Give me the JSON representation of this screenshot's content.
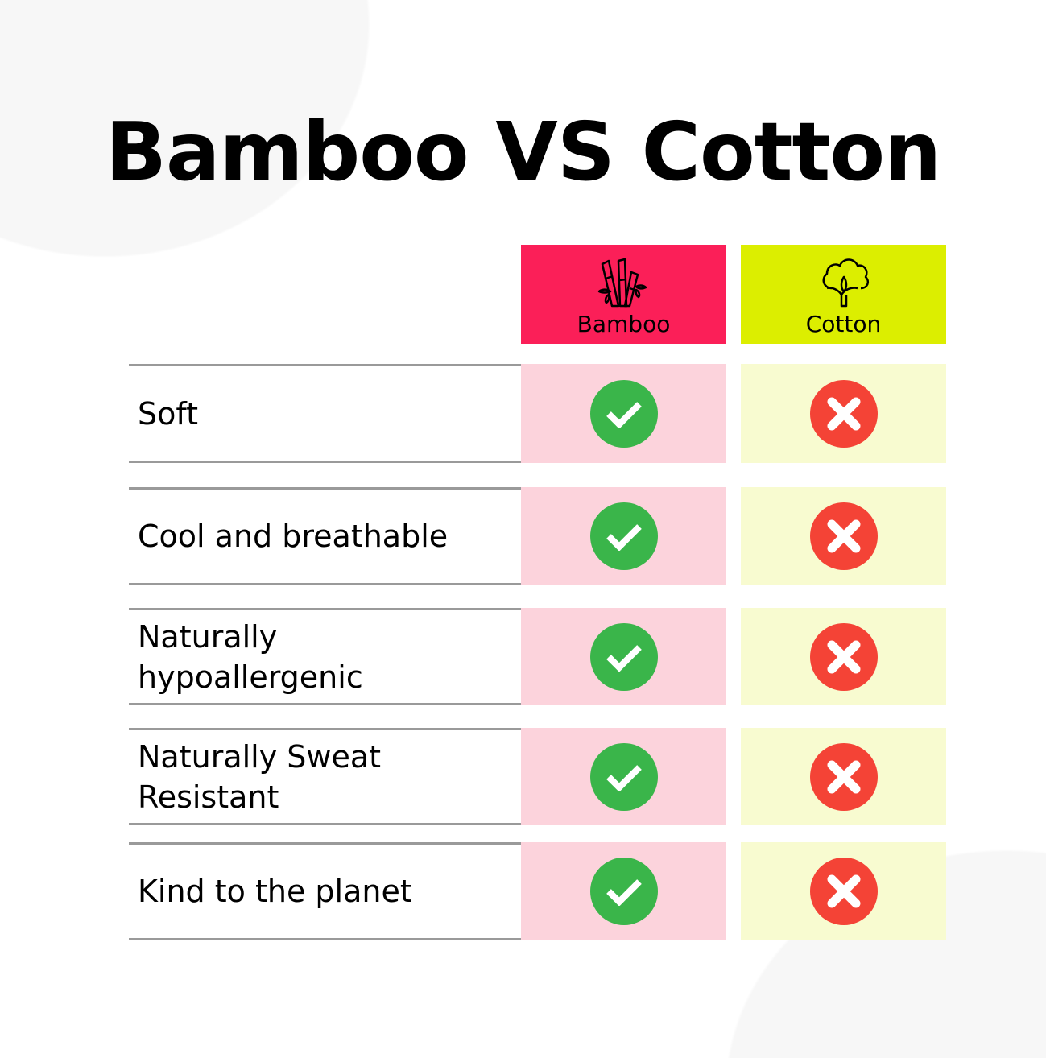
{
  "title": "Bamboo VS Cotton",
  "columns": [
    {
      "label": "Bamboo",
      "color": "#fb1f58",
      "cell_color": "#fcd3dc",
      "icon": "bamboo-icon"
    },
    {
      "label": "Cotton",
      "color": "#dcee00",
      "cell_color": "#f8fbd0",
      "icon": "cotton-icon"
    }
  ],
  "rows": [
    {
      "label": "Soft",
      "bamboo": "check",
      "cotton": "cross"
    },
    {
      "label": "Cool and breathable",
      "bamboo": "check",
      "cotton": "cross"
    },
    {
      "label": "Naturally hypoallergenic",
      "bamboo": "check",
      "cotton": "cross"
    },
    {
      "label": "Naturally Sweat Resistant",
      "bamboo": "check",
      "cotton": "cross"
    },
    {
      "label": "Kind to the planet",
      "bamboo": "check",
      "cotton": "cross"
    }
  ],
  "colors": {
    "check": "#3ab54a",
    "cross": "#f44336"
  }
}
